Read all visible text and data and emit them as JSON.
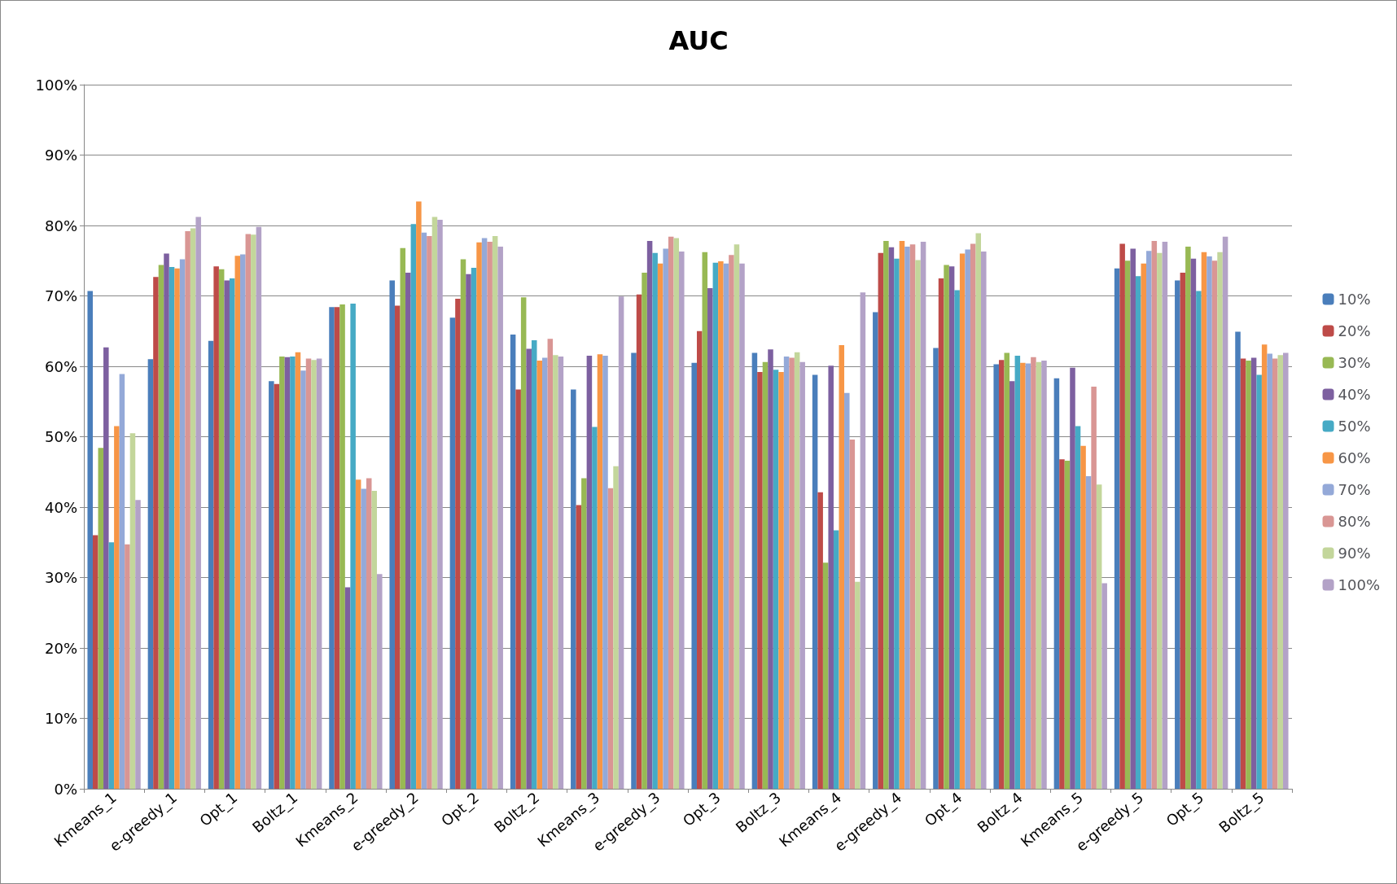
{
  "chart_data": {
    "type": "bar",
    "title": "AUC",
    "categories": [
      "Kmeans_1",
      "e-greedy_1",
      "Opt_1",
      "Boltz_1",
      "Kmeans_2",
      "e-greedy_2",
      "Opt_2",
      "Boltz_2",
      "Kmeans_3",
      "e-greedy_3",
      "Opt_3",
      "Boltz_3",
      "Kmeans_4",
      "e-greedy_4",
      "Opt_4",
      "Boltz_4",
      "Kmeans_5",
      "e-greedy_5",
      "Opt_5",
      "Boltz_5"
    ],
    "series": [
      {
        "name": "10%",
        "color": "#4a7ebb",
        "values": [
          70.7,
          61,
          63.6,
          57.9,
          68.4,
          72.2,
          66.9,
          64.5,
          56.7,
          61.9,
          60.5,
          61.9,
          58.8,
          67.7,
          62.6,
          60.3,
          58.3,
          73.9,
          72.2,
          64.9
        ]
      },
      {
        "name": "20%",
        "color": "#be4b48",
        "values": [
          36,
          72.7,
          74.2,
          57.5,
          68.4,
          68.6,
          69.6,
          56.7,
          40.3,
          70.2,
          65,
          59.2,
          42.1,
          76.1,
          72.5,
          60.9,
          46.8,
          77.4,
          73.3,
          61.1
        ]
      },
      {
        "name": "30%",
        "color": "#98b954",
        "values": [
          48.4,
          74.4,
          73.8,
          61.4,
          68.8,
          76.8,
          75.2,
          69.8,
          44.1,
          73.3,
          76.2,
          60.6,
          32.1,
          77.8,
          74.4,
          61.9,
          46.6,
          75,
          77,
          60.8
        ]
      },
      {
        "name": "40%",
        "color": "#7d60a0",
        "values": [
          62.7,
          76,
          72.2,
          61.3,
          28.6,
          73.3,
          73.1,
          62.5,
          61.5,
          77.8,
          71.1,
          62.4,
          60.1,
          76.9,
          74.2,
          57.9,
          59.8,
          76.7,
          75.3,
          61.2
        ]
      },
      {
        "name": "50%",
        "color": "#46aac5",
        "values": [
          35,
          74.1,
          72.5,
          61.4,
          68.9,
          80.2,
          74,
          63.7,
          51.4,
          76.1,
          74.7,
          59.5,
          36.7,
          75.3,
          70.8,
          61.5,
          51.5,
          72.8,
          70.7,
          58.8
        ]
      },
      {
        "name": "60%",
        "color": "#f79646",
        "values": [
          51.5,
          73.9,
          75.7,
          62,
          43.9,
          83.4,
          77.6,
          60.8,
          61.7,
          74.6,
          74.9,
          59.2,
          63,
          77.8,
          76,
          60.5,
          48.7,
          74.6,
          76.2,
          63.1
        ]
      },
      {
        "name": "70%",
        "color": "#94a9d8",
        "values": [
          58.9,
          75.2,
          75.9,
          59.4,
          42.6,
          79,
          78.2,
          61.2,
          61.5,
          76.7,
          74.6,
          61.4,
          56.2,
          77,
          76.6,
          60.4,
          44.4,
          76.4,
          75.6,
          61.8
        ]
      },
      {
        "name": "80%",
        "color": "#d99694",
        "values": [
          34.7,
          79.2,
          78.8,
          61.1,
          44.1,
          78.5,
          77.7,
          63.9,
          42.7,
          78.4,
          75.8,
          61.2,
          49.6,
          77.3,
          77.4,
          61.3,
          57.1,
          77.8,
          75,
          61.1
        ]
      },
      {
        "name": "90%",
        "color": "#c3d69b",
        "values": [
          50.5,
          79.6,
          78.7,
          60.9,
          42.3,
          81.2,
          78.5,
          61.6,
          45.8,
          78.2,
          77.3,
          62,
          29.4,
          75.1,
          78.9,
          60.6,
          43.2,
          76.1,
          76.2,
          61.6
        ]
      },
      {
        "name": "100%",
        "color": "#b3a2c7",
        "values": [
          41,
          81.2,
          79.8,
          61.1,
          30.5,
          80.8,
          77,
          61.4,
          69.9,
          76.3,
          74.6,
          60.6,
          70.5,
          77.7,
          76.3,
          60.8,
          29.2,
          77.7,
          78.4,
          61.9
        ]
      }
    ],
    "ylim": [
      0,
      100
    ],
    "yticks": [
      {
        "value": 0,
        "label": "0%"
      },
      {
        "value": 10,
        "label": "10%"
      },
      {
        "value": 20,
        "label": "20%"
      },
      {
        "value": 30,
        "label": "30%"
      },
      {
        "value": 40,
        "label": "40%"
      },
      {
        "value": 50,
        "label": "50%"
      },
      {
        "value": 60,
        "label": "60%"
      },
      {
        "value": 70,
        "label": "70%"
      },
      {
        "value": 80,
        "label": "80%"
      },
      {
        "value": 90,
        "label": "90%"
      },
      {
        "value": 100,
        "label": "100%"
      }
    ],
    "grid": "y",
    "legend": "right"
  }
}
